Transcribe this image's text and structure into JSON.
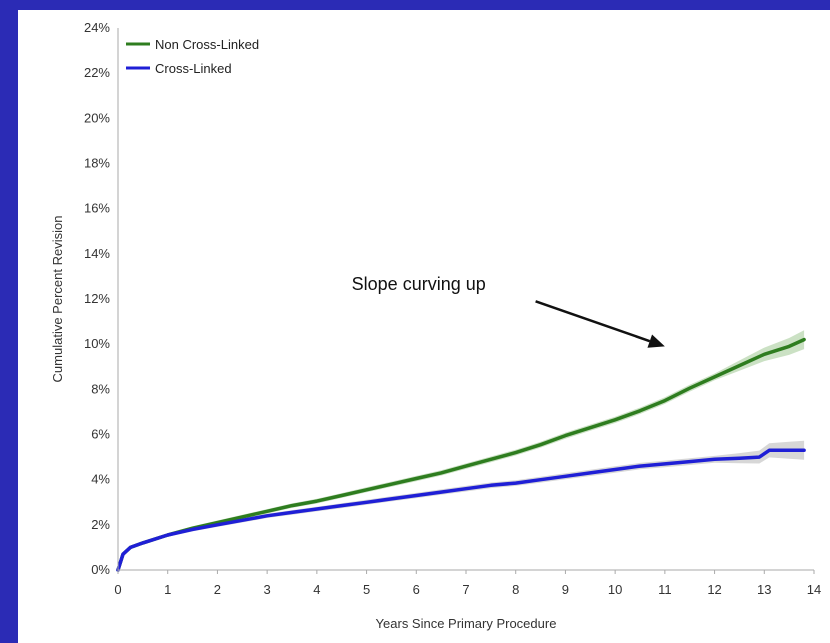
{
  "chart_data": {
    "type": "line",
    "title": "",
    "xlabel": "Years Since Primary Procedure",
    "ylabel": "Cumulative Percent Revision",
    "xlim": [
      0,
      14
    ],
    "ylim": [
      0,
      24
    ],
    "x_ticks": [
      "0",
      "1",
      "2",
      "3",
      "4",
      "5",
      "6",
      "7",
      "8",
      "9",
      "10",
      "11",
      "12",
      "13",
      "14"
    ],
    "y_ticks": [
      "0%",
      "2%",
      "4%",
      "6%",
      "8%",
      "10%",
      "12%",
      "14%",
      "16%",
      "18%",
      "20%",
      "22%",
      "24%"
    ],
    "grid": false,
    "legend": "top-left",
    "series": [
      {
        "name": "Non Cross-Linked",
        "color": "#2e7d1f",
        "band_color": "#b9d7b0",
        "x": [
          0,
          0.1,
          0.25,
          0.5,
          1,
          1.5,
          2,
          2.5,
          3,
          3.5,
          4,
          4.5,
          5,
          5.5,
          6,
          6.5,
          7,
          7.5,
          8,
          8.5,
          9,
          9.5,
          10,
          10.5,
          11,
          11.5,
          12,
          12.5,
          13,
          13.5,
          13.8
        ],
        "values": [
          0,
          0.7,
          1.0,
          1.2,
          1.55,
          1.85,
          2.1,
          2.35,
          2.6,
          2.85,
          3.05,
          3.3,
          3.55,
          3.8,
          4.05,
          4.3,
          4.6,
          4.9,
          5.2,
          5.55,
          5.95,
          6.3,
          6.65,
          7.05,
          7.5,
          8.05,
          8.55,
          9.05,
          9.55,
          9.9,
          10.2
        ]
      },
      {
        "name": "Cross-Linked",
        "color": "#1f1fd6",
        "band_color": "#c9c9c9",
        "x": [
          0,
          0.1,
          0.25,
          0.5,
          1,
          1.5,
          2,
          2.5,
          3,
          3.5,
          4,
          4.5,
          5,
          5.5,
          6,
          6.5,
          7,
          7.5,
          8,
          8.5,
          9,
          9.5,
          10,
          10.5,
          11,
          11.5,
          12,
          12.5,
          12.9,
          13.1,
          13.5,
          13.8
        ],
        "values": [
          0,
          0.7,
          1.0,
          1.2,
          1.55,
          1.8,
          2.0,
          2.2,
          2.4,
          2.55,
          2.7,
          2.85,
          3.0,
          3.15,
          3.3,
          3.45,
          3.6,
          3.75,
          3.85,
          4.0,
          4.15,
          4.3,
          4.45,
          4.6,
          4.7,
          4.8,
          4.9,
          4.95,
          5.0,
          5.3,
          5.3,
          5.3
        ]
      }
    ],
    "annotations": [
      {
        "text": "Slope curving up",
        "text_at": [
          4.7,
          12.4
        ],
        "arrow_from": [
          8.4,
          11.9
        ],
        "arrow_to": [
          11.0,
          9.9
        ]
      }
    ]
  }
}
